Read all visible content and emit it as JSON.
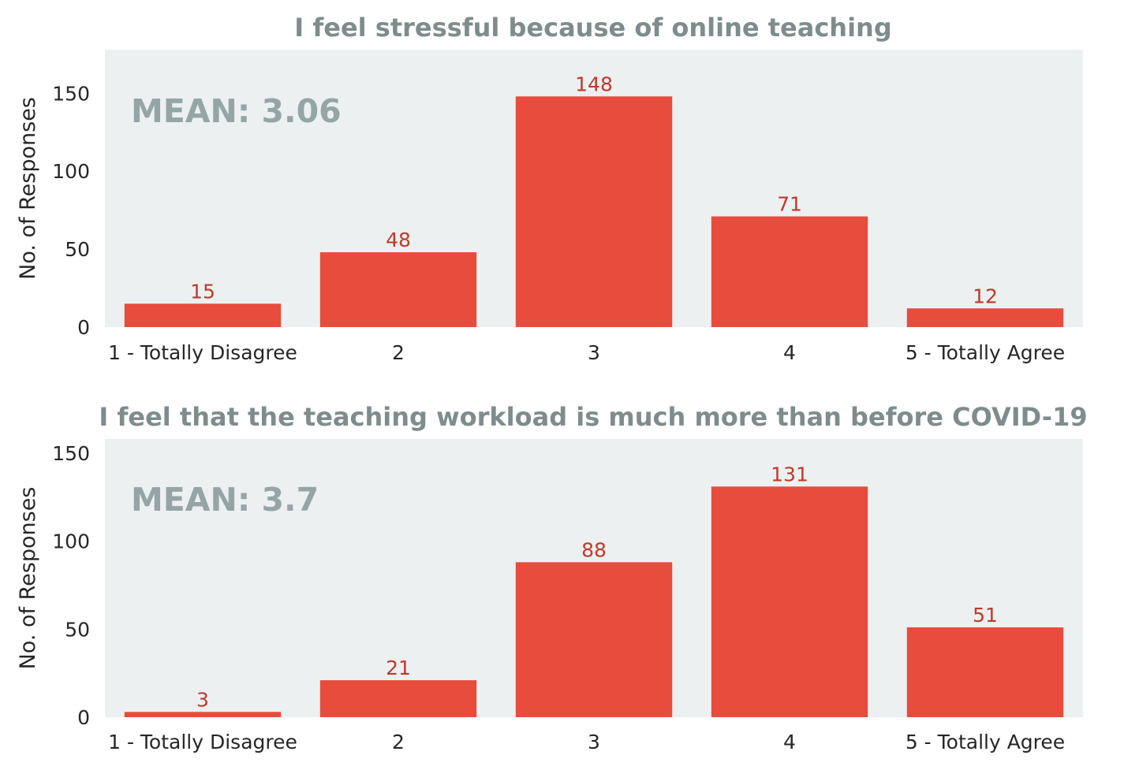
{
  "chart_data": [
    {
      "type": "bar",
      "title": "I feel stressful because of online teaching",
      "annotation": "MEAN: 3.06",
      "xlabel": "",
      "ylabel": "No. of Responses",
      "categories": [
        "1 - Totally Disagree",
        "2",
        "3",
        "4",
        "5 - Totally Agree"
      ],
      "values": [
        15,
        48,
        148,
        71,
        12
      ],
      "ylim": [
        0,
        178
      ],
      "yticks": [
        0,
        50,
        100,
        150
      ],
      "grid": false,
      "bar_color": "#e74c3c",
      "label_color": "#c0392b",
      "background": "#ecf0f1"
    },
    {
      "type": "bar",
      "title": "I feel that the teaching workload is much more than before COVID-19",
      "annotation": "MEAN: 3.7",
      "xlabel": "",
      "ylabel": "No. of Responses",
      "categories": [
        "1 - Totally Disagree",
        "2",
        "3",
        "4",
        "5 - Totally Agree"
      ],
      "values": [
        3,
        21,
        88,
        131,
        51
      ],
      "ylim": [
        0,
        158
      ],
      "yticks": [
        0,
        50,
        100,
        150
      ],
      "grid": false,
      "bar_color": "#e74c3c",
      "label_color": "#c0392b",
      "background": "#ecf0f1"
    }
  ]
}
